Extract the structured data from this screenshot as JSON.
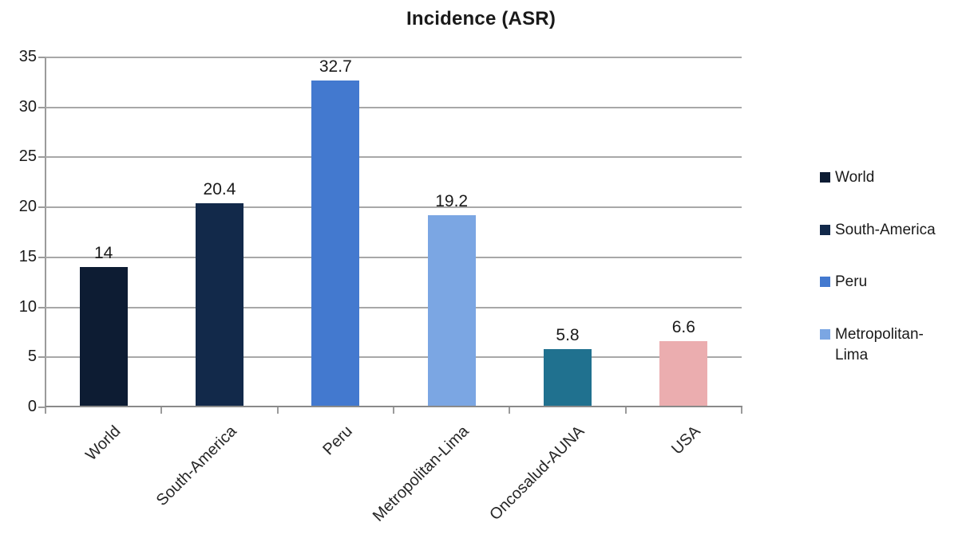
{
  "title": "Incidence (ASR)",
  "colors": {
    "background": "#ffffff",
    "gridline": "#a8a8a8",
    "axis": "#8a8a8a",
    "text": "#1a1a1a"
  },
  "chart_data": {
    "type": "bar",
    "title": "Incidence (ASR)",
    "xlabel": "",
    "ylabel": "",
    "categories": [
      "World",
      "South-America",
      "Peru",
      "Metropolitan-Lima",
      "Oncosalud-AUNA",
      "USA"
    ],
    "values": [
      14,
      20.4,
      32.7,
      19.2,
      5.8,
      6.6
    ],
    "value_labels": [
      "14",
      "20.4",
      "32.7",
      "19.2",
      "5.8",
      "6.6"
    ],
    "bar_colors": [
      "#0d1c33",
      "#12294a",
      "#4379cf",
      "#7ba6e3",
      "#20718f",
      "#ebadaf"
    ],
    "ylim": [
      0,
      35
    ],
    "yticks": [
      0,
      5,
      10,
      15,
      20,
      25,
      30,
      35
    ],
    "grid": true,
    "legend_position": "right",
    "legend": [
      {
        "label": "World",
        "color": "#0d1c33"
      },
      {
        "label": "South-America",
        "color": "#12294a"
      },
      {
        "label": "Peru",
        "color": "#4379cf"
      },
      {
        "label": "Metropolitan-Lima",
        "color": "#7ba6e3"
      }
    ]
  }
}
